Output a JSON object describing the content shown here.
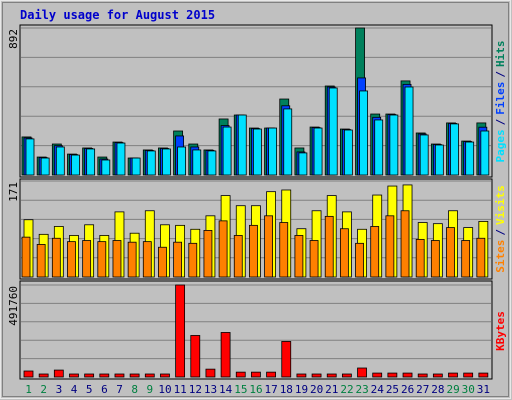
{
  "chart_data": [
    {
      "type": "bar",
      "title": "Daily usage for August 2015",
      "ylim": [
        0,
        892
      ],
      "yticks": [
        892
      ],
      "grid": true,
      "legend_separator": "/",
      "series": [
        {
          "name": "Hits",
          "color": "#00805c",
          "values": [
            231,
            109,
            188,
            127,
            164,
            109,
            200,
            103,
            152,
            164,
            267,
            188,
            152,
            340,
            364,
            285,
            285,
            461,
            164,
            291,
            540,
            279,
            892,
            370,
            370,
            571,
            255,
            188,
            316,
            206,
            316
          ]
        },
        {
          "name": "Files",
          "color": "#0040ff",
          "values": [
            225,
            106,
            178,
            124,
            161,
            97,
            197,
            103,
            149,
            161,
            237,
            170,
            149,
            300,
            364,
            282,
            285,
            420,
            140,
            288,
            534,
            276,
            589,
            350,
            367,
            550,
            249,
            185,
            313,
            203,
            290
          ]
        },
        {
          "name": "Pages",
          "color": "#00e0ff",
          "values": [
            219,
            103,
            170,
            121,
            158,
            91,
            194,
            103,
            146,
            158,
            170,
            152,
            146,
            291,
            364,
            279,
            285,
            401,
            134,
            285,
            528,
            273,
            510,
            334,
            364,
            534,
            243,
            182,
            310,
            200,
            267
          ]
        }
      ]
    },
    {
      "type": "bar",
      "ylim": [
        0,
        171
      ],
      "yticks": [
        171
      ],
      "grid": true,
      "legend_separator": "/",
      "series": [
        {
          "name": "Visits",
          "color": "#ffff00",
          "values": [
            102,
            76,
            90,
            74,
            93,
            74,
            116,
            78,
            118,
            93,
            92,
            85,
            109,
            145,
            127,
            127,
            152,
            155,
            86,
            118,
            145,
            116,
            85,
            146,
            162,
            164,
            97,
            95,
            118,
            88,
            99
          ]
        },
        {
          "name": "Sites",
          "color": "#ff8000",
          "values": [
            71,
            58,
            69,
            63,
            65,
            63,
            65,
            62,
            63,
            53,
            62,
            60,
            83,
            100,
            74,
            92,
            109,
            97,
            74,
            65,
            108,
            86,
            60,
            90,
            109,
            118,
            67,
            65,
            88,
            65,
            69
          ]
        }
      ]
    },
    {
      "type": "bar",
      "ylim": [
        0,
        491760
      ],
      "yticks": [
        491760
      ],
      "grid": true,
      "categories": [
        "1",
        "2",
        "3",
        "4",
        "5",
        "6",
        "7",
        "8",
        "9",
        "10",
        "11",
        "12",
        "13",
        "14",
        "15",
        "16",
        "17",
        "18",
        "19",
        "20",
        "21",
        "22",
        "23",
        "24",
        "25",
        "26",
        "27",
        "28",
        "29",
        "30",
        "31"
      ],
      "weekends": [
        "1",
        "2",
        "8",
        "9",
        "15",
        "16",
        "22",
        "23",
        "29",
        "30"
      ],
      "weekend_color": "#008040",
      "weekday_color": "#000080",
      "series": [
        {
          "name": "KBytes",
          "color": "#ff0000",
          "values": [
            32000,
            16000,
            37000,
            16000,
            16000,
            16000,
            16000,
            16000,
            16000,
            16000,
            491760,
            222000,
            42000,
            238000,
            26000,
            26000,
            26000,
            190000,
            16000,
            16000,
            16000,
            16000,
            48000,
            21000,
            21000,
            21000,
            16000,
            16000,
            21000,
            21000,
            21000
          ]
        }
      ]
    }
  ]
}
